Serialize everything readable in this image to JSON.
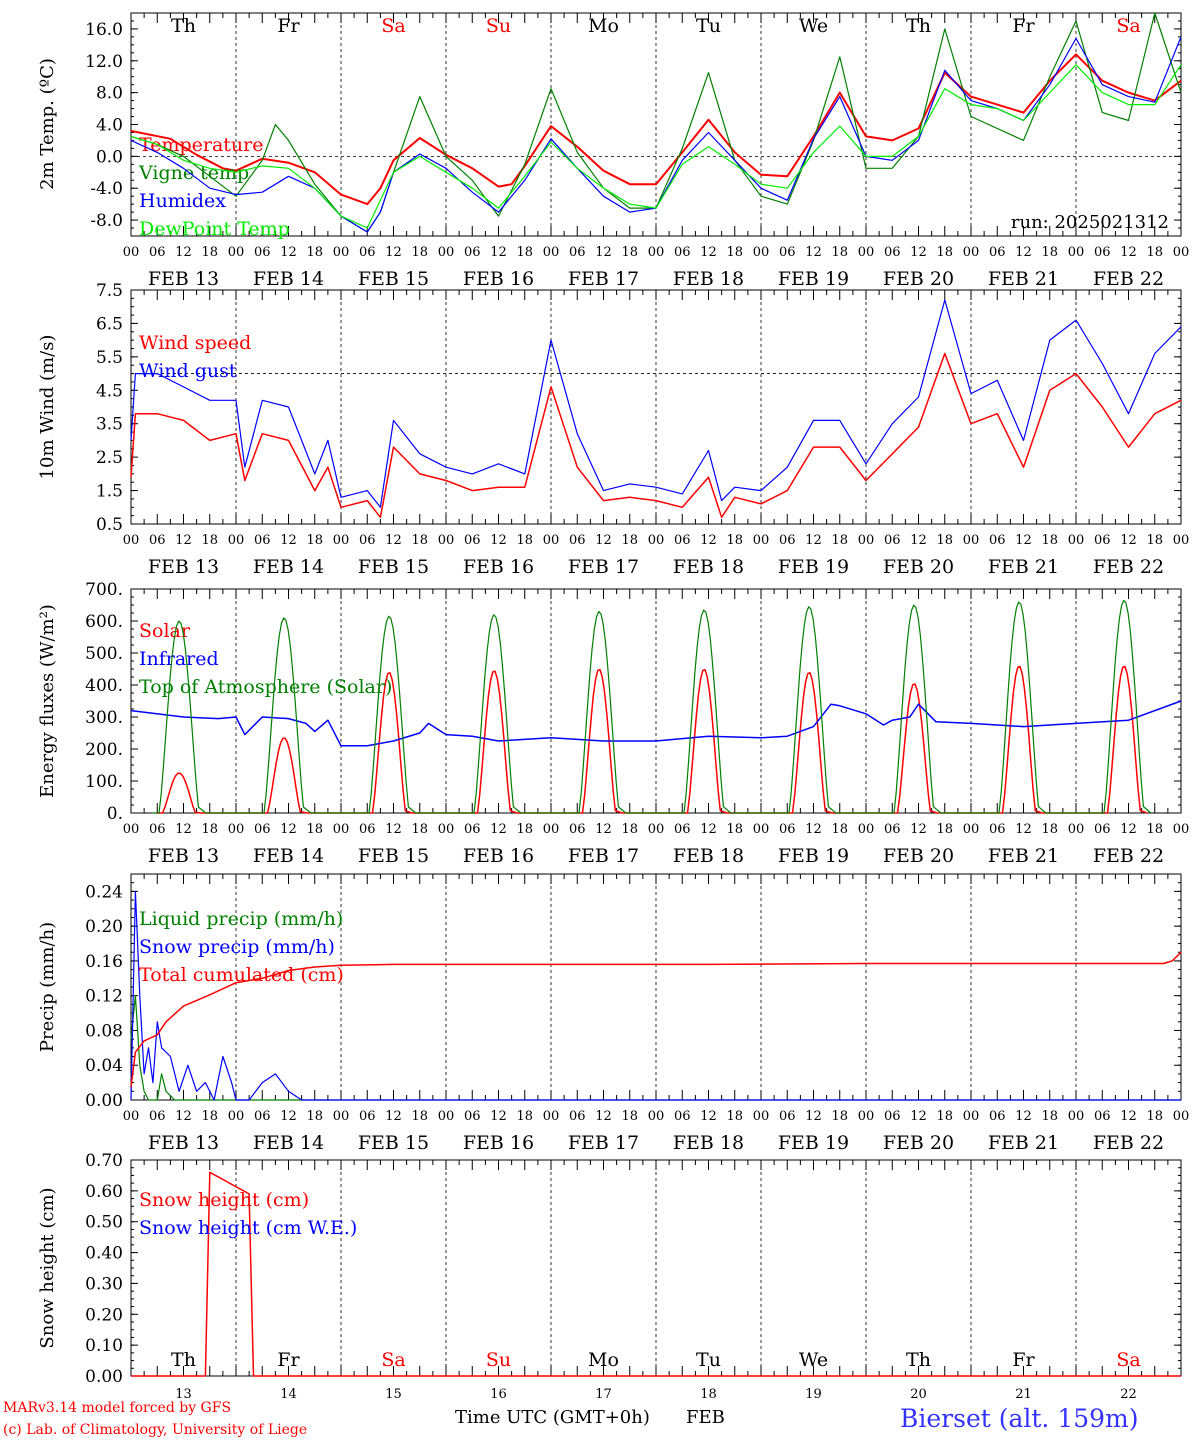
{
  "colors": {
    "red": "#ff0000",
    "green": "#008000",
    "blue": "#0000ff",
    "lime": "#00ee00",
    "black": "#000000",
    "brightblue": "#3333ff"
  },
  "footer": {
    "credit1": "MARv3.14 model forced by GFS",
    "credit2": "(c) Lab. of Climatology, University of Liege",
    "xtitle": "Time UTC (GMT+0h)",
    "month": "FEB",
    "station": "Bierset (alt. 159m)"
  },
  "chart_data": [
    {
      "type": "line",
      "ylabel": "2m Temp. (ºC)",
      "ylim": [
        -10,
        18
      ],
      "yticks": [
        "16.0",
        "12.0",
        "8.0",
        "4.0",
        "0.0",
        "-4.0",
        "-8.0"
      ],
      "zero_line": 0.0,
      "run_label": "run: 2025021312",
      "day_labels": [
        "Th",
        "Fr",
        "Sa",
        "Su",
        "Mo",
        "Tu",
        "We",
        "Th",
        "Fr",
        "Sa"
      ],
      "day_colors": [
        "black",
        "black",
        "red",
        "red",
        "black",
        "black",
        "black",
        "black",
        "black",
        "red"
      ],
      "hour_ticks": [
        "00",
        "06",
        "12",
        "18"
      ],
      "date_labels": [
        "FEB 13",
        "FEB 14",
        "FEB 15",
        "FEB 16",
        "FEB 17",
        "FEB 18",
        "FEB 19",
        "FEB 20",
        "FEB 21",
        "FEB 22"
      ],
      "series": [
        {
          "name": "Temperature",
          "color": "red",
          "width": 2,
          "x": [
            0,
            9,
            15,
            21,
            24,
            30,
            36,
            42,
            48,
            54,
            57,
            60,
            66,
            72,
            78,
            84,
            87,
            90,
            96,
            102,
            108,
            114,
            120,
            126,
            132,
            138,
            144,
            150,
            156,
            162,
            168,
            174,
            180,
            186,
            192,
            198,
            204,
            210,
            216,
            222,
            228,
            234,
            240
          ],
          "y": [
            3.2,
            2.2,
            0.2,
            -1.5,
            -1.8,
            -0.3,
            -0.8,
            -2.0,
            -4.8,
            -6.0,
            -4.0,
            -0.5,
            2.3,
            0.2,
            -1.5,
            -3.8,
            -3.5,
            -1.2,
            3.8,
            1.2,
            -1.8,
            -3.5,
            -3.5,
            0.5,
            4.6,
            0.5,
            -2.3,
            -2.5,
            2.5,
            8.0,
            2.5,
            2.0,
            3.5,
            10.5,
            7.5,
            6.5,
            5.5,
            9.5,
            12.8,
            9.5,
            8.0,
            7.0,
            9.5
          ]
        },
        {
          "name": "Vigne temp",
          "color": "green",
          "width": 1.2,
          "x": [
            0,
            6,
            12,
            18,
            24,
            30,
            33,
            36,
            42,
            48,
            54,
            57,
            60,
            66,
            72,
            78,
            84,
            90,
            96,
            102,
            108,
            114,
            120,
            126,
            132,
            138,
            144,
            150,
            156,
            162,
            168,
            174,
            180,
            186,
            192,
            198,
            204,
            210,
            216,
            222,
            228,
            234,
            240
          ],
          "y": [
            2.5,
            1.5,
            0.0,
            -2.5,
            -5.0,
            -0.5,
            4.0,
            2.0,
            -3.5,
            -7.5,
            -9.5,
            -7.0,
            -2.0,
            7.5,
            0.0,
            -3.0,
            -7.5,
            -1.0,
            8.5,
            0.5,
            -4.0,
            -6.5,
            -6.5,
            1.0,
            10.5,
            -0.5,
            -5.0,
            -6.0,
            2.0,
            12.5,
            -1.5,
            -1.5,
            2.5,
            16.0,
            5.0,
            3.5,
            2.0,
            10.0,
            17.0,
            5.5,
            4.5,
            18.0,
            8.0
          ]
        },
        {
          "name": "Humidex",
          "color": "blue",
          "width": 1.2,
          "x": [
            0,
            6,
            12,
            18,
            24,
            30,
            36,
            42,
            48,
            54,
            57,
            60,
            66,
            72,
            78,
            84,
            90,
            96,
            102,
            108,
            114,
            120,
            126,
            132,
            138,
            144,
            150,
            156,
            162,
            168,
            174,
            180,
            186,
            192,
            198,
            204,
            210,
            216,
            222,
            228,
            234,
            240
          ],
          "y": [
            2.0,
            0.5,
            -1.5,
            -4.0,
            -4.8,
            -4.5,
            -2.5,
            -4.0,
            -7.5,
            -9.5,
            -7.0,
            -2.0,
            0.3,
            -1.5,
            -4.5,
            -7.0,
            -3.0,
            2.2,
            -1.5,
            -5.0,
            -7.0,
            -6.5,
            -0.5,
            3.0,
            -0.5,
            -4.0,
            -5.5,
            2.2,
            7.5,
            0.0,
            -0.5,
            2.0,
            10.8,
            7.0,
            6.0,
            4.5,
            9.0,
            14.8,
            9.0,
            7.5,
            6.8,
            15.0
          ]
        },
        {
          "name": "DewPoint Temp",
          "color": "lime",
          "width": 1.2,
          "x": [
            0,
            6,
            12,
            18,
            24,
            30,
            36,
            42,
            48,
            54,
            60,
            66,
            72,
            78,
            84,
            90,
            96,
            102,
            108,
            114,
            120,
            126,
            132,
            138,
            144,
            150,
            156,
            162,
            168,
            174,
            180,
            186,
            192,
            198,
            204,
            210,
            216,
            222,
            228,
            234,
            240
          ],
          "y": [
            2.5,
            1.5,
            -0.5,
            -1.5,
            -2.0,
            -1.2,
            -1.5,
            -4.0,
            -7.5,
            -9.0,
            -2.0,
            0.0,
            -2.0,
            -4.0,
            -6.5,
            -2.5,
            1.8,
            -1.5,
            -4.0,
            -6.0,
            -6.5,
            -1.0,
            1.2,
            -1.0,
            -3.5,
            -4.0,
            0.5,
            3.8,
            0.0,
            0.0,
            2.5,
            8.5,
            6.5,
            6.0,
            4.5,
            8.0,
            11.5,
            8.0,
            6.5,
            6.5,
            11.5
          ]
        }
      ]
    },
    {
      "type": "line",
      "ylabel": "10m Wind (m/s)",
      "ylim": [
        0.5,
        7.5
      ],
      "yticks": [
        "7.5",
        "6.5",
        "5.5",
        "4.5",
        "3.5",
        "2.5",
        "1.5",
        "0.5"
      ],
      "zero_line": 5.0,
      "hour_ticks": [
        "00",
        "06",
        "12",
        "18"
      ],
      "date_labels": [
        "FEB 13",
        "FEB 14",
        "FEB 15",
        "FEB 16",
        "FEB 17",
        "FEB 18",
        "FEB 19",
        "FEB 20",
        "FEB 21",
        "FEB 22"
      ],
      "series": [
        {
          "name": "Wind speed",
          "color": "red",
          "width": 1.5,
          "x": [
            0,
            1,
            6,
            12,
            18,
            24,
            26,
            30,
            36,
            42,
            45,
            48,
            54,
            57,
            60,
            66,
            72,
            78,
            84,
            90,
            96,
            102,
            108,
            114,
            120,
            126,
            132,
            135,
            138,
            144,
            150,
            156,
            162,
            168,
            174,
            180,
            186,
            192,
            198,
            204,
            210,
            216,
            222,
            228,
            234,
            240
          ],
          "y": [
            1.9,
            3.8,
            3.8,
            3.6,
            3.0,
            3.2,
            1.8,
            3.2,
            3.0,
            1.5,
            2.2,
            1.0,
            1.2,
            0.7,
            2.8,
            2.0,
            1.8,
            1.5,
            1.6,
            1.6,
            4.6,
            2.2,
            1.2,
            1.3,
            1.2,
            1.0,
            1.9,
            0.7,
            1.3,
            1.1,
            1.5,
            2.8,
            2.8,
            1.8,
            2.6,
            3.4,
            5.6,
            3.5,
            3.8,
            2.2,
            4.5,
            5.0,
            4.0,
            2.8,
            3.8,
            4.2
          ]
        },
        {
          "name": "Wind gust",
          "color": "blue",
          "width": 1.2,
          "x": [
            0,
            1,
            6,
            12,
            18,
            24,
            26,
            30,
            36,
            42,
            45,
            48,
            54,
            57,
            60,
            66,
            72,
            78,
            84,
            90,
            96,
            102,
            108,
            114,
            120,
            126,
            132,
            135,
            138,
            144,
            150,
            156,
            162,
            168,
            174,
            180,
            186,
            192,
            198,
            204,
            210,
            216,
            222,
            228,
            234,
            240
          ],
          "y": [
            3.0,
            5.0,
            5.0,
            4.6,
            4.2,
            4.2,
            2.2,
            4.2,
            4.0,
            2.0,
            3.0,
            1.3,
            1.5,
            1.0,
            3.6,
            2.6,
            2.2,
            2.0,
            2.3,
            2.0,
            6.0,
            3.2,
            1.5,
            1.7,
            1.6,
            1.4,
            2.7,
            1.2,
            1.6,
            1.5,
            2.2,
            3.6,
            3.6,
            2.3,
            3.5,
            4.3,
            7.2,
            4.4,
            4.8,
            3.0,
            6.0,
            6.6,
            5.3,
            3.8,
            5.6,
            6.4
          ]
        }
      ]
    },
    {
      "type": "line",
      "ylabel": "Energy fluxes (W/m²)",
      "ylim": [
        0,
        700
      ],
      "yticks": [
        "700.",
        "600.",
        "500.",
        "400.",
        "300.",
        "200.",
        "100.",
        "0."
      ],
      "hour_ticks": [
        "00",
        "06",
        "12",
        "18"
      ],
      "date_labels": [
        "FEB 13",
        "FEB 14",
        "FEB 15",
        "FEB 16",
        "FEB 17",
        "FEB 18",
        "FEB 19",
        "FEB 20",
        "FEB 21",
        "FEB 22"
      ],
      "series": [
        {
          "name": "Solar",
          "color": "red",
          "width": 1.5,
          "peak_hours": [
            11,
            35,
            59,
            83,
            107,
            131,
            155,
            179,
            203,
            227
          ],
          "peaks": [
            125,
            235,
            440,
            445,
            450,
            450,
            440,
            405,
            460,
            460
          ]
        },
        {
          "name": "Infrared",
          "color": "blue",
          "width": 1.5,
          "x": [
            0,
            12,
            20,
            24,
            26,
            30,
            36,
            40,
            42,
            45,
            48,
            54,
            60,
            66,
            68,
            72,
            78,
            84,
            96,
            108,
            120,
            132,
            144,
            150,
            156,
            160,
            162,
            168,
            172,
            174,
            178,
            180,
            184,
            192,
            198,
            204,
            216,
            228,
            240
          ],
          "y": [
            320,
            300,
            295,
            300,
            245,
            300,
            295,
            280,
            255,
            290,
            210,
            210,
            225,
            250,
            280,
            245,
            240,
            225,
            235,
            225,
            225,
            240,
            235,
            240,
            270,
            340,
            335,
            310,
            275,
            290,
            300,
            340,
            285,
            280,
            275,
            270,
            280,
            290,
            350
          ]
        },
        {
          "name": "Top of Atmosphere (Solar)",
          "color": "green",
          "width": 1.2,
          "peak_hours": [
            11,
            35,
            59,
            83,
            107,
            131,
            155,
            179,
            203,
            227
          ],
          "peaks": [
            600,
            610,
            615,
            620,
            630,
            635,
            645,
            650,
            660,
            665
          ]
        }
      ]
    },
    {
      "type": "line",
      "ylabel": "Precip (mm/h)",
      "ylim": [
        0,
        0.26
      ],
      "yticks": [
        "0.24",
        "0.20",
        "0.16",
        "0.12",
        "0.08",
        "0.04",
        "0.00"
      ],
      "hour_ticks": [
        "00",
        "06",
        "12",
        "18"
      ],
      "date_labels": [
        "FEB 13",
        "FEB 14",
        "FEB 15",
        "FEB 16",
        "FEB 17",
        "FEB 18",
        "FEB 19",
        "FEB 20",
        "FEB 21",
        "FEB 22"
      ],
      "series": [
        {
          "name": "Liquid precip (mm/h)",
          "color": "green",
          "width": 1.2,
          "x": [
            0,
            1,
            2,
            3,
            4,
            5,
            6,
            7,
            8,
            10,
            12,
            240
          ],
          "y": [
            0.07,
            0.12,
            0.04,
            0.01,
            0.0,
            0.0,
            0.0,
            0.03,
            0.01,
            0.0,
            0.0,
            0.0
          ]
        },
        {
          "name": "Snow precip (mm/h)",
          "color": "blue",
          "width": 1.2,
          "x": [
            0,
            1,
            2,
            3,
            4,
            5,
            6,
            7,
            9,
            11,
            13,
            15,
            17,
            19,
            21,
            23,
            24,
            27,
            30,
            33,
            36,
            39,
            42,
            48,
            240
          ],
          "y": [
            0.0,
            0.24,
            0.12,
            0.03,
            0.06,
            0.02,
            0.09,
            0.06,
            0.05,
            0.01,
            0.04,
            0.01,
            0.02,
            0.0,
            0.05,
            0.02,
            0.0,
            0.0,
            0.02,
            0.03,
            0.01,
            0.0,
            0.0,
            0.0,
            0.0
          ]
        },
        {
          "name": "Total cumulated (cm)",
          "color": "red",
          "width": 1.5,
          "x": [
            0,
            1,
            3,
            6,
            8,
            12,
            18,
            24,
            30,
            36,
            42,
            48,
            60,
            96,
            132,
            168,
            200,
            236,
            238,
            240
          ],
          "y": [
            0.015,
            0.055,
            0.068,
            0.075,
            0.09,
            0.108,
            0.121,
            0.135,
            0.14,
            0.149,
            0.153,
            0.155,
            0.156,
            0.156,
            0.156,
            0.157,
            0.157,
            0.157,
            0.16,
            0.17
          ]
        }
      ]
    },
    {
      "type": "line",
      "ylabel": "Snow height (cm)",
      "ylim": [
        0,
        0.7
      ],
      "yticks": [
        "0.70",
        "0.60",
        "0.50",
        "0.40",
        "0.30",
        "0.20",
        "0.10",
        "0.00"
      ],
      "day_labels": [
        "Th",
        "Fr",
        "Sa",
        "Su",
        "Mo",
        "Tu",
        "We",
        "Th",
        "Fr",
        "Sa"
      ],
      "day_colors": [
        "black",
        "black",
        "red",
        "red",
        "black",
        "black",
        "black",
        "black",
        "black",
        "red"
      ],
      "day_numbers": [
        "13",
        "14",
        "15",
        "16",
        "17",
        "18",
        "19",
        "20",
        "21",
        "22"
      ],
      "series": [
        {
          "name": "Snow height (cm)",
          "color": "red",
          "width": 1.5,
          "x": [
            0,
            17,
            18,
            27,
            28,
            240
          ],
          "y": [
            0,
            0,
            0.66,
            0.59,
            0,
            0
          ]
        },
        {
          "name": "Snow height (cm W.E.)",
          "color": "blue",
          "width": 1.5,
          "x": [],
          "y": []
        }
      ]
    }
  ]
}
